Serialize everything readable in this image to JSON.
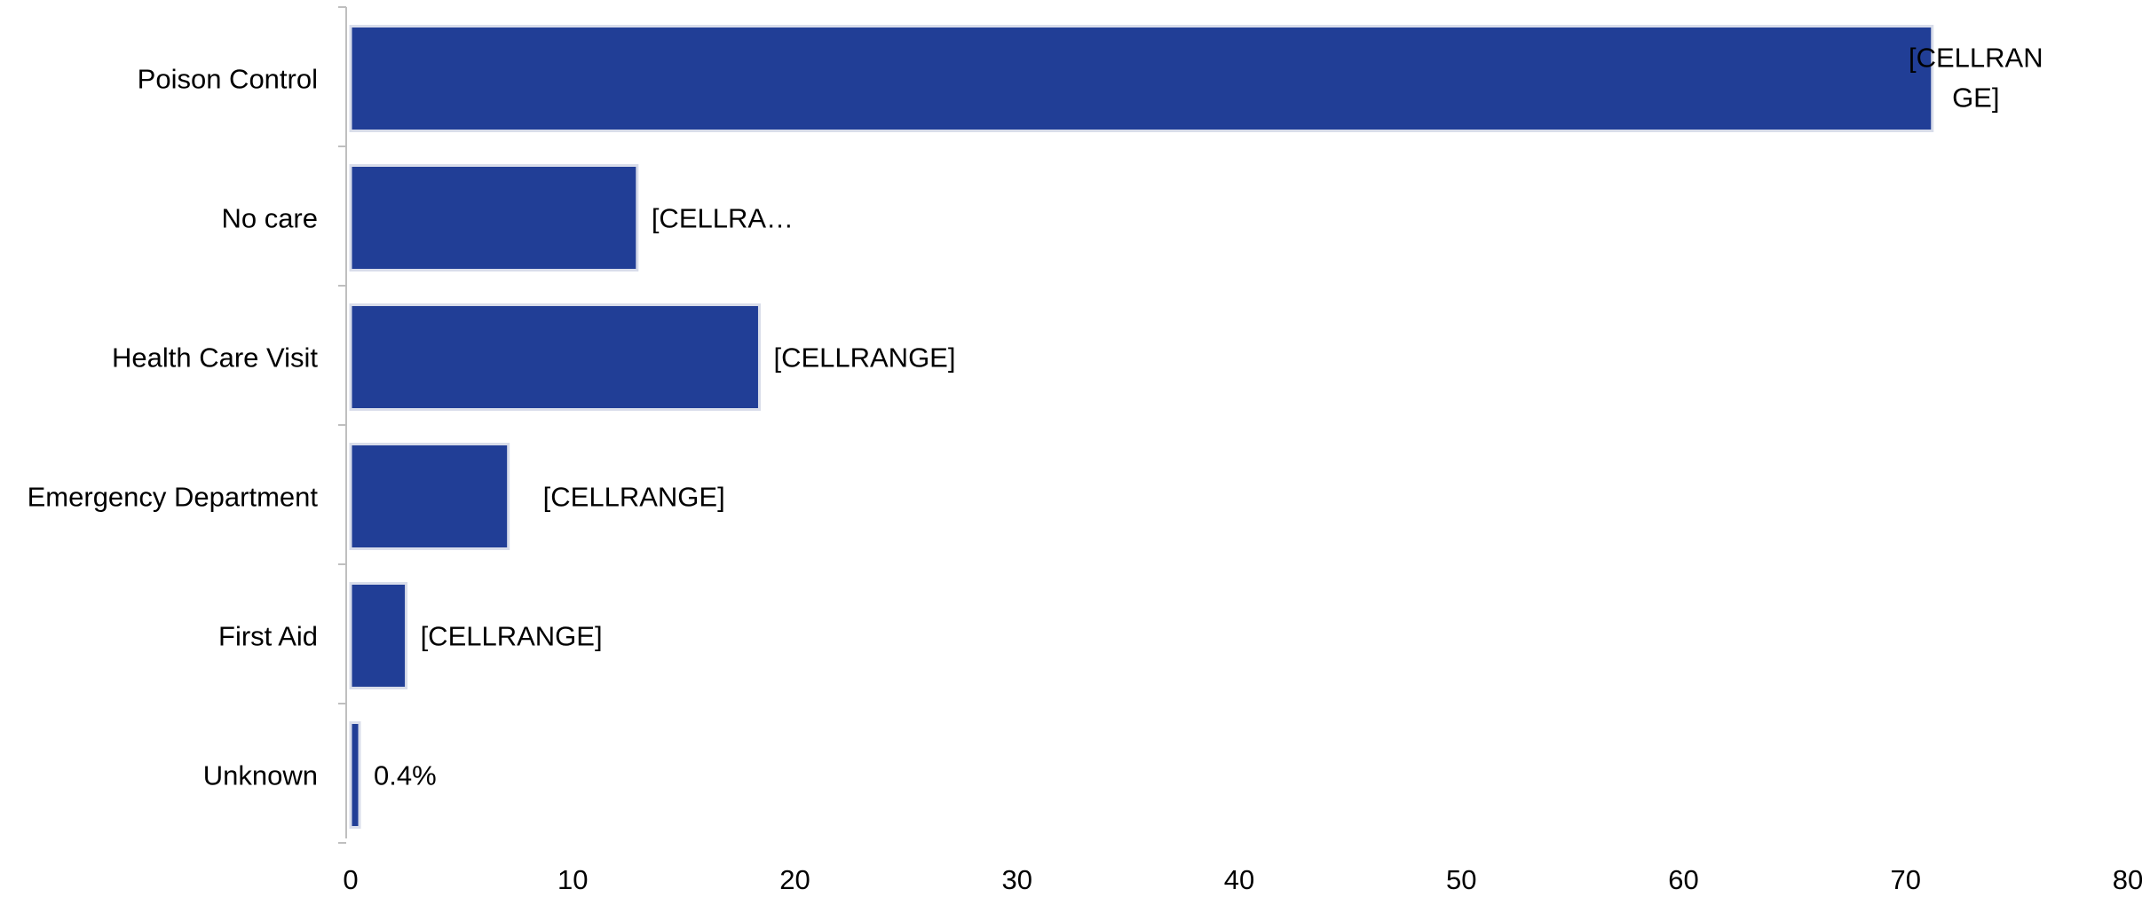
{
  "chart_data": {
    "type": "bar",
    "orientation": "horizontal",
    "categories": [
      "Poison Control",
      "No care",
      "Health Care Visit",
      "Emergency Department",
      "First Aid",
      "Unknown"
    ],
    "values": [
      71.2,
      12.9,
      18.4,
      7.1,
      2.5,
      0.4
    ],
    "data_labels": [
      [
        "[CELLRAN",
        "GE]"
      ],
      [
        "[CELLRA…"
      ],
      [
        "[CELLRANGE]"
      ],
      [
        "[CELLRANGE]"
      ],
      [
        "[CELLRANGE]"
      ],
      [
        "0.4%"
      ]
    ],
    "x_ticks": [
      "0",
      "10",
      "20",
      "30",
      "40",
      "50",
      "60",
      "70",
      "80"
    ],
    "xlim": [
      0,
      80
    ],
    "grid": false,
    "legend": "none",
    "bar_color": "#213E96",
    "bar_edge_color": "#D9DDEA",
    "axis_color": "#BFBFBF"
  }
}
